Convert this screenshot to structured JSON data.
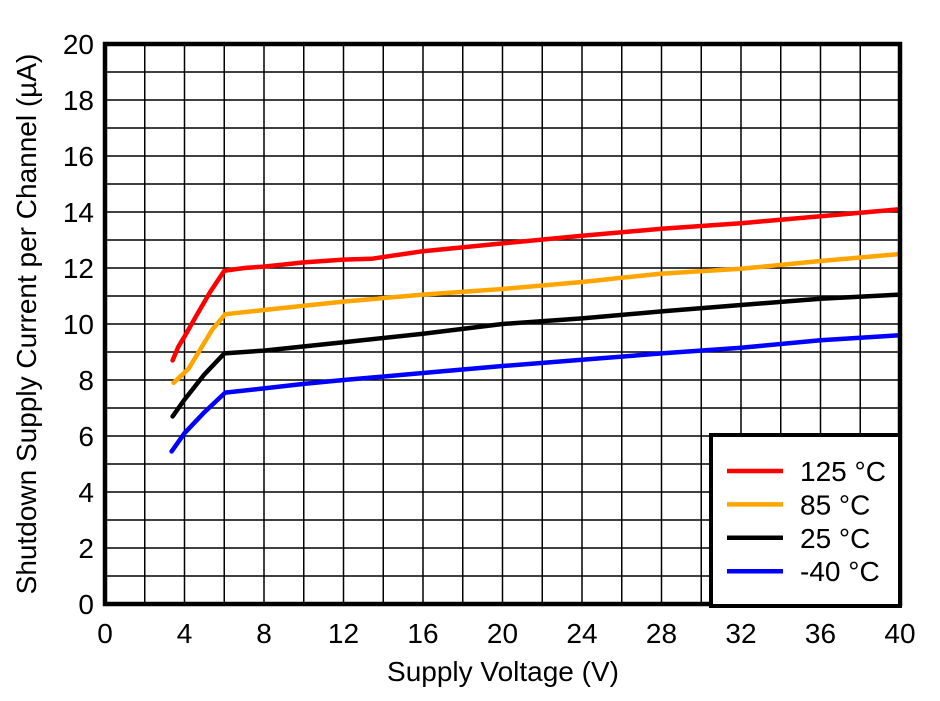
{
  "chart_data": {
    "type": "line",
    "title": "",
    "xlabel": "Supply Voltage (V)",
    "ylabel": "Shutdown Supply Current per Channel (µA)",
    "xlim": [
      0,
      40
    ],
    "ylim": [
      0,
      20
    ],
    "x_ticks": [
      0,
      4,
      8,
      12,
      16,
      20,
      24,
      28,
      32,
      36,
      40
    ],
    "y_ticks": [
      0,
      2,
      4,
      6,
      8,
      10,
      12,
      14,
      16,
      18,
      20
    ],
    "x_grid_step": 2,
    "y_grid_step": 1,
    "grid": "on",
    "axis_color": "#000000",
    "background_color": "#ffffff",
    "legend": {
      "position": "bottom-right",
      "border_color": "#000000"
    },
    "series": [
      {
        "id": "125c",
        "name": "125 °C",
        "color": "#ff0000",
        "points": [
          [
            3.4,
            8.7
          ],
          [
            3.7,
            9.2
          ],
          [
            4.0,
            9.55
          ],
          [
            4.6,
            10.3
          ],
          [
            5.3,
            11.15
          ],
          [
            6.0,
            11.9
          ],
          [
            7.0,
            12.0
          ],
          [
            8.0,
            12.05
          ],
          [
            10.0,
            12.2
          ],
          [
            12.0,
            12.3
          ],
          [
            13.4,
            12.33
          ],
          [
            16.0,
            12.6
          ],
          [
            20.0,
            12.88
          ],
          [
            24.0,
            13.15
          ],
          [
            28.0,
            13.4
          ],
          [
            32.0,
            13.6
          ],
          [
            36.0,
            13.85
          ],
          [
            40.0,
            14.1
          ]
        ]
      },
      {
        "id": "85c",
        "name": "85 °C",
        "color": "#ffa500",
        "points": [
          [
            3.45,
            7.9
          ],
          [
            4.2,
            8.4
          ],
          [
            4.8,
            9.1
          ],
          [
            5.4,
            9.8
          ],
          [
            6.05,
            10.35
          ],
          [
            8.0,
            10.5
          ],
          [
            10.0,
            10.65
          ],
          [
            12.0,
            10.8
          ],
          [
            16.0,
            11.05
          ],
          [
            20.0,
            11.25
          ],
          [
            24.0,
            11.5
          ],
          [
            28.0,
            11.8
          ],
          [
            32.0,
            11.97
          ],
          [
            36.0,
            12.25
          ],
          [
            40.0,
            12.5
          ]
        ]
      },
      {
        "id": "25c",
        "name": "25 °C",
        "color": "#000000",
        "points": [
          [
            3.4,
            6.7
          ],
          [
            4.0,
            7.3
          ],
          [
            5.0,
            8.2
          ],
          [
            6.0,
            8.95
          ],
          [
            8.0,
            9.05
          ],
          [
            12.0,
            9.35
          ],
          [
            16.0,
            9.65
          ],
          [
            20.0,
            10.0
          ],
          [
            24.0,
            10.2
          ],
          [
            28.0,
            10.45
          ],
          [
            32.0,
            10.68
          ],
          [
            36.0,
            10.9
          ],
          [
            40.0,
            11.05
          ]
        ]
      },
      {
        "id": "minus40c",
        "name": "-40 °C",
        "color": "#0000ff",
        "points": [
          [
            3.35,
            5.45
          ],
          [
            4.0,
            6.1
          ],
          [
            5.0,
            6.85
          ],
          [
            6.05,
            7.55
          ],
          [
            8.0,
            7.7
          ],
          [
            10.0,
            7.86
          ],
          [
            12.0,
            8.0
          ],
          [
            16.0,
            8.25
          ],
          [
            20.0,
            8.5
          ],
          [
            24.0,
            8.72
          ],
          [
            28.0,
            8.95
          ],
          [
            32.0,
            9.15
          ],
          [
            36.0,
            9.42
          ],
          [
            40.0,
            9.6
          ]
        ]
      }
    ]
  }
}
